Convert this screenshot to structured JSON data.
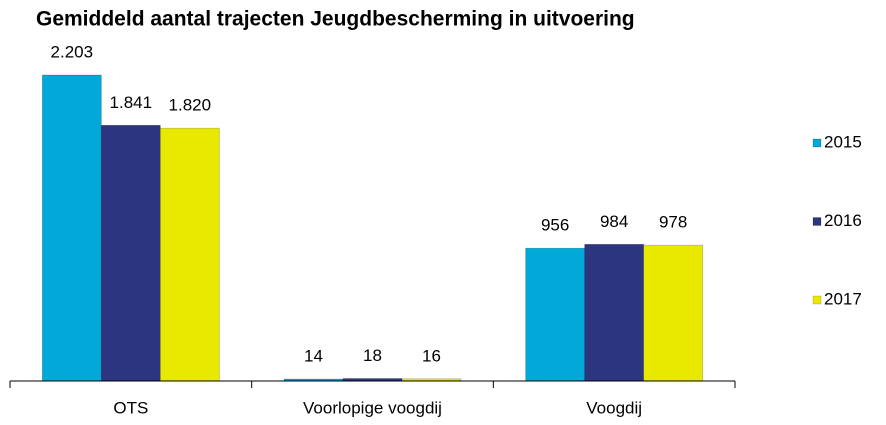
{
  "chart_data": {
    "type": "bar",
    "title": "Gemiddeld aantal trajecten Jeugdbescherming in uitvoering",
    "categories": [
      "OTS",
      "Voorlopige voogdij",
      "Voogdij"
    ],
    "series": [
      {
        "name": "2015",
        "color": "#00a9d8",
        "values": [
          2203,
          14,
          956
        ],
        "value_labels": [
          "2.203",
          "14",
          "956"
        ]
      },
      {
        "name": "2016",
        "color": "#2b3580",
        "values": [
          1841,
          18,
          984
        ],
        "value_labels": [
          "1.841",
          "18",
          "984"
        ]
      },
      {
        "name": "2017",
        "color": "#e9e900",
        "values": [
          1820,
          16,
          978
        ],
        "value_labels": [
          "1.820",
          "16",
          "978"
        ]
      }
    ],
    "legend": "right"
  }
}
